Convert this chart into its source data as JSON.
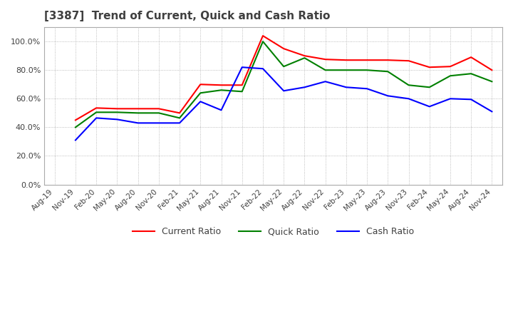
{
  "title": "[3387]  Trend of Current, Quick and Cash Ratio",
  "title_color": "#404040",
  "background_color": "#ffffff",
  "ylim": [
    0.0,
    1.1
  ],
  "yticks": [
    0.0,
    0.2,
    0.4,
    0.6,
    0.8,
    1.0
  ],
  "x_labels": [
    "Aug-19",
    "Nov-19",
    "Feb-20",
    "May-20",
    "Aug-20",
    "Nov-20",
    "Feb-21",
    "May-21",
    "Aug-21",
    "Nov-21",
    "Feb-22",
    "May-22",
    "Aug-22",
    "Nov-22",
    "Feb-23",
    "May-23",
    "Aug-23",
    "Nov-23",
    "Feb-24",
    "May-24",
    "Aug-24",
    "Nov-24"
  ],
  "current_ratio": [
    null,
    0.45,
    0.535,
    0.53,
    0.53,
    0.53,
    0.5,
    0.7,
    0.695,
    0.695,
    1.04,
    0.95,
    0.9,
    0.875,
    0.87,
    0.87,
    0.87,
    0.865,
    0.82,
    0.825,
    0.89,
    0.8
  ],
  "quick_ratio": [
    null,
    0.4,
    0.505,
    0.505,
    0.5,
    0.5,
    0.465,
    0.64,
    0.66,
    0.65,
    1.0,
    0.825,
    0.885,
    0.8,
    0.8,
    0.8,
    0.79,
    0.695,
    0.68,
    0.76,
    0.775,
    0.72
  ],
  "cash_ratio": [
    null,
    0.31,
    0.465,
    0.455,
    0.43,
    0.43,
    0.43,
    0.58,
    0.52,
    0.82,
    0.81,
    0.655,
    0.68,
    0.72,
    0.68,
    0.67,
    0.62,
    0.6,
    0.545,
    0.6,
    0.595,
    0.51
  ],
  "current_color": "#ff0000",
  "quick_color": "#008000",
  "cash_color": "#0000ff",
  "legend_labels": [
    "Current Ratio",
    "Quick Ratio",
    "Cash Ratio"
  ],
  "line_width": 1.5,
  "grid_color": "#aaaaaa",
  "tick_color": "#404040",
  "spine_color": "#aaaaaa"
}
